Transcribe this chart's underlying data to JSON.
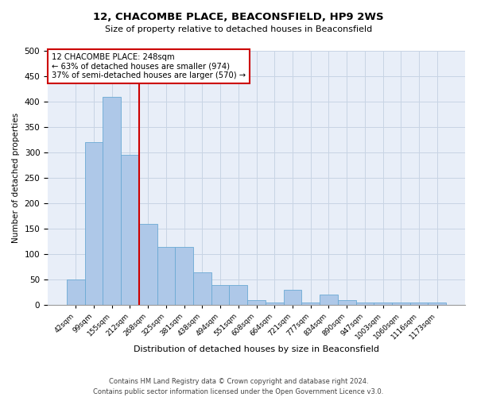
{
  "title": "12, CHACOMBE PLACE, BEACONSFIELD, HP9 2WS",
  "subtitle": "Size of property relative to detached houses in Beaconsfield",
  "xlabel": "Distribution of detached houses by size in Beaconsfield",
  "ylabel": "Number of detached properties",
  "footer_line1": "Contains HM Land Registry data © Crown copyright and database right 2024.",
  "footer_line2": "Contains public sector information licensed under the Open Government Licence v3.0.",
  "categories": [
    "42sqm",
    "99sqm",
    "155sqm",
    "212sqm",
    "268sqm",
    "325sqm",
    "381sqm",
    "438sqm",
    "494sqm",
    "551sqm",
    "608sqm",
    "664sqm",
    "721sqm",
    "777sqm",
    "834sqm",
    "890sqm",
    "947sqm",
    "1003sqm",
    "1060sqm",
    "1116sqm",
    "1173sqm"
  ],
  "values": [
    50,
    320,
    410,
    295,
    160,
    115,
    115,
    65,
    40,
    40,
    10,
    5,
    30,
    5,
    20,
    10,
    5,
    5,
    5,
    5,
    5
  ],
  "bar_color": "#aec8e8",
  "bar_edge_color": "#6baad4",
  "grid_color": "#c8d4e4",
  "bg_color": "#e8eef8",
  "annotation_box_text_line1": "12 CHACOMBE PLACE: 248sqm",
  "annotation_box_text_line2": "← 63% of detached houses are smaller (974)",
  "annotation_box_text_line3": "37% of semi-detached houses are larger (570) →",
  "vline_color": "#cc0000",
  "annotation_box_color": "#cc0000",
  "vline_index": 3,
  "ylim": [
    0,
    500
  ],
  "yticks": [
    0,
    50,
    100,
    150,
    200,
    250,
    300,
    350,
    400,
    450,
    500
  ]
}
